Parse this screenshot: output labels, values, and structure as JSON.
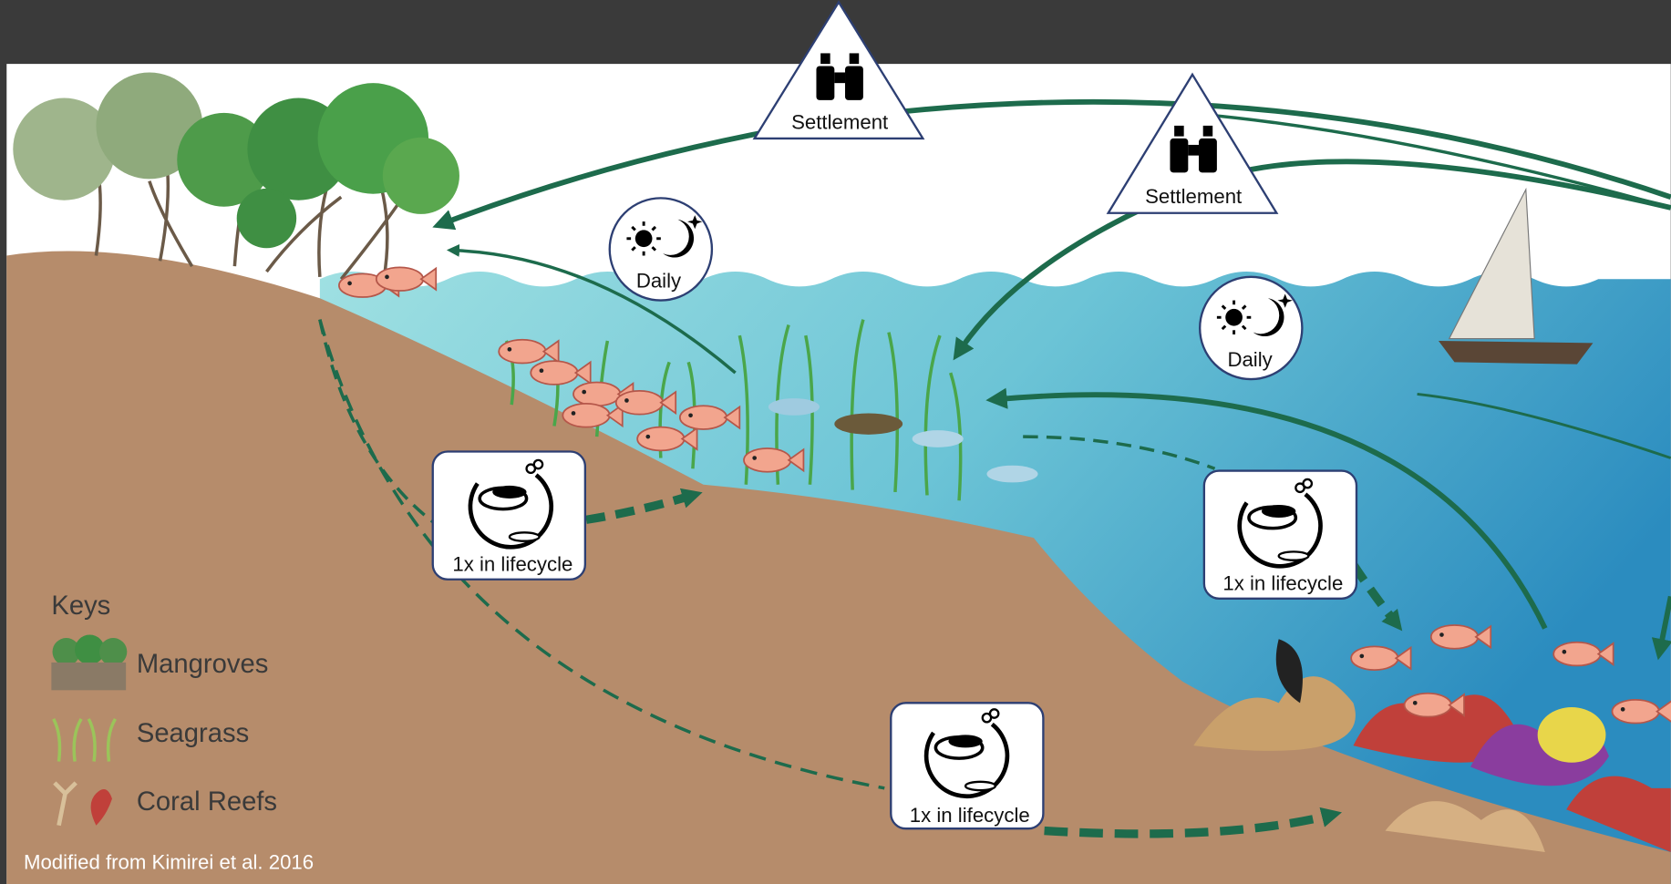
{
  "badges": {
    "settlement": [
      {
        "label": "Settlement"
      },
      {
        "label": "Settlement"
      }
    ],
    "daily": [
      {
        "label": "Daily"
      },
      {
        "label": "Daily"
      }
    ],
    "lifecycle": [
      {
        "label": "1x in lifecycle"
      },
      {
        "label": "1x in lifecycle"
      },
      {
        "label": "1x in lifecycle"
      }
    ]
  },
  "keys": {
    "title": "Keys",
    "items": [
      "Mangroves",
      "Seagrass",
      "Coral Reefs"
    ]
  },
  "credit": "Modified from Kimirei et al. 2016"
}
